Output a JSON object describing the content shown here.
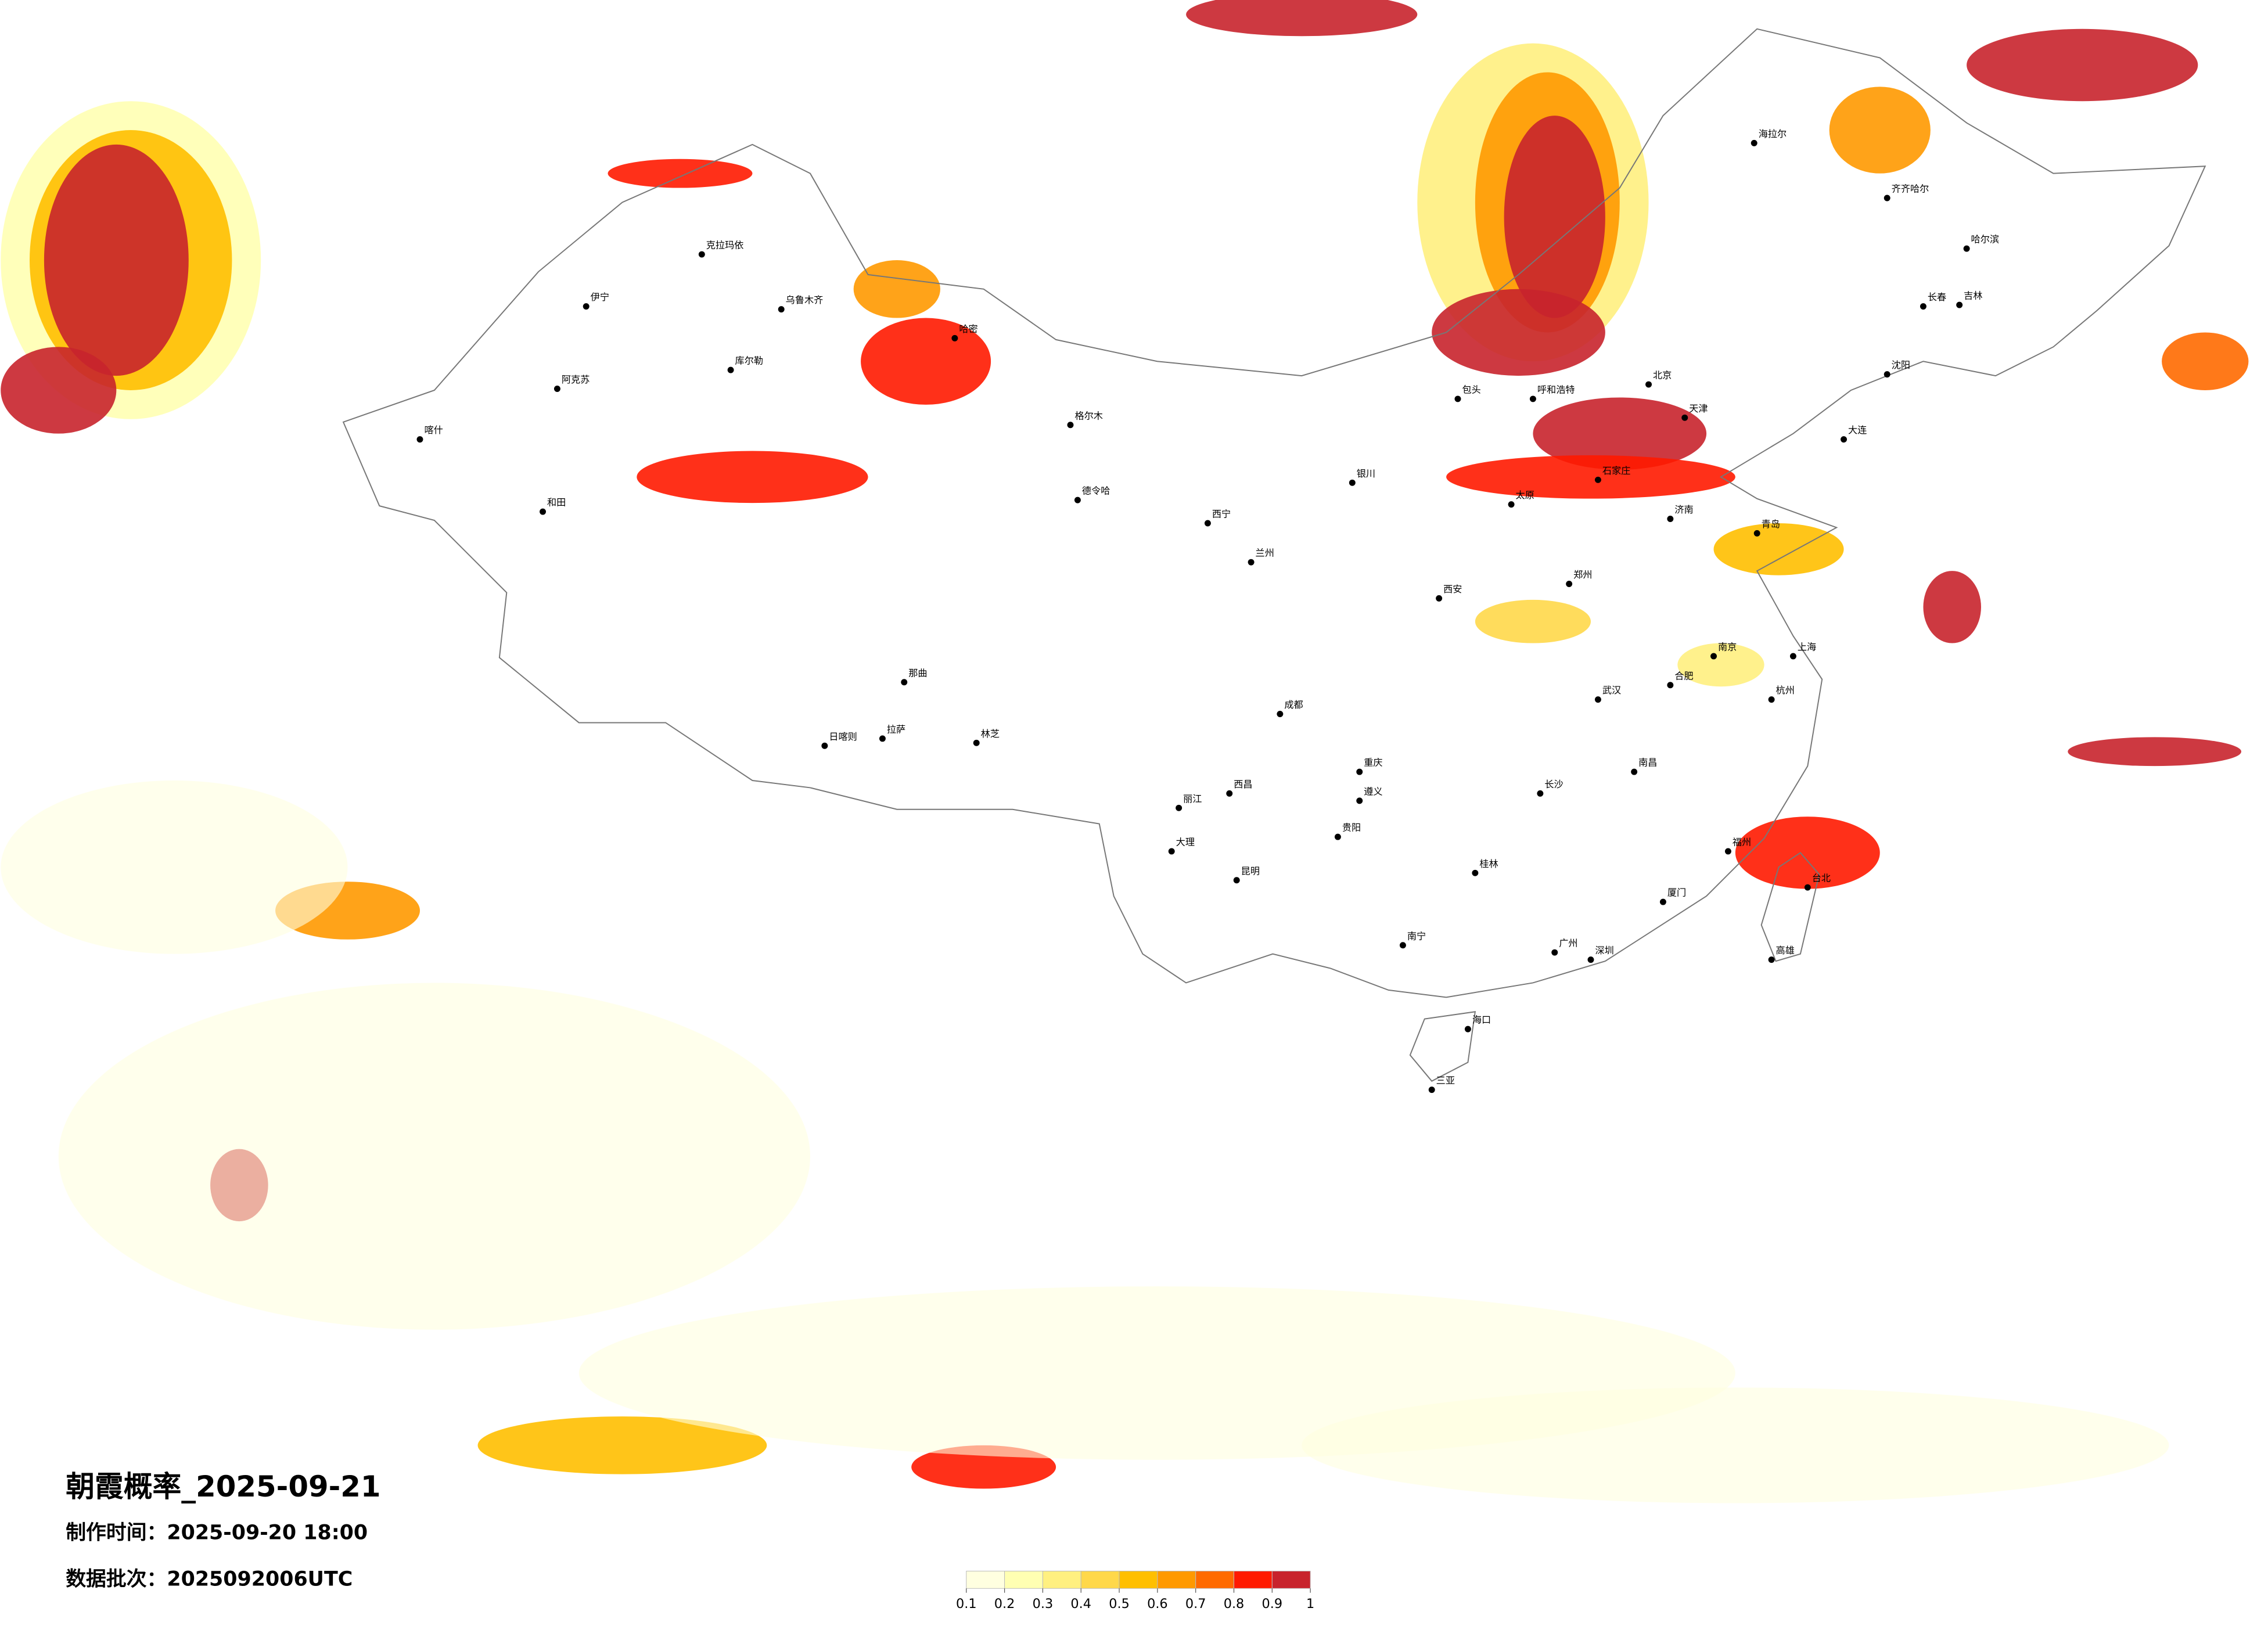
{
  "title": "朝霞概率_2025-09-21",
  "production_time": "制作时间：2025-09-20 18:00",
  "data_batch": "数据批次：2025092006UTC",
  "legend": {
    "colors": [
      "#ffffe0",
      "#ffffb2",
      "#fff080",
      "#ffd84a",
      "#ffbf00",
      "#ff9900",
      "#ff6a00",
      "#ff1a00",
      "#c8232c"
    ],
    "ticks": [
      0.1,
      0.2,
      0.3,
      0.4,
      0.5,
      0.6,
      0.7,
      0.8,
      0.9,
      1
    ]
  },
  "cities": [
    "海拉尔",
    "齐齐哈尔",
    "哈尔滨",
    "长春",
    "吉林",
    "沈阳",
    "大连",
    "呼和浩特",
    "包头",
    "北京",
    "天津",
    "石家庄",
    "太原",
    "济南",
    "青岛",
    "郑州",
    "西安",
    "兰州",
    "西宁",
    "银川",
    "乌鲁木齐",
    "克拉玛依",
    "伊宁",
    "阿克苏",
    "喀什",
    "和田",
    "哈密",
    "库尔勒",
    "格尔木",
    "德令哈",
    "拉萨",
    "日喀则",
    "林芝",
    "那曲",
    "成都",
    "重庆",
    "贵阳",
    "昆明",
    "南宁",
    "广州",
    "深圳",
    "海口",
    "三亚",
    "长沙",
    "武汉",
    "南昌",
    "福州",
    "厦门",
    "杭州",
    "上海",
    "南京",
    "合肥",
    "台北",
    "高雄",
    "大理",
    "丽江",
    "西昌",
    "遵义",
    "桂林"
  ]
}
